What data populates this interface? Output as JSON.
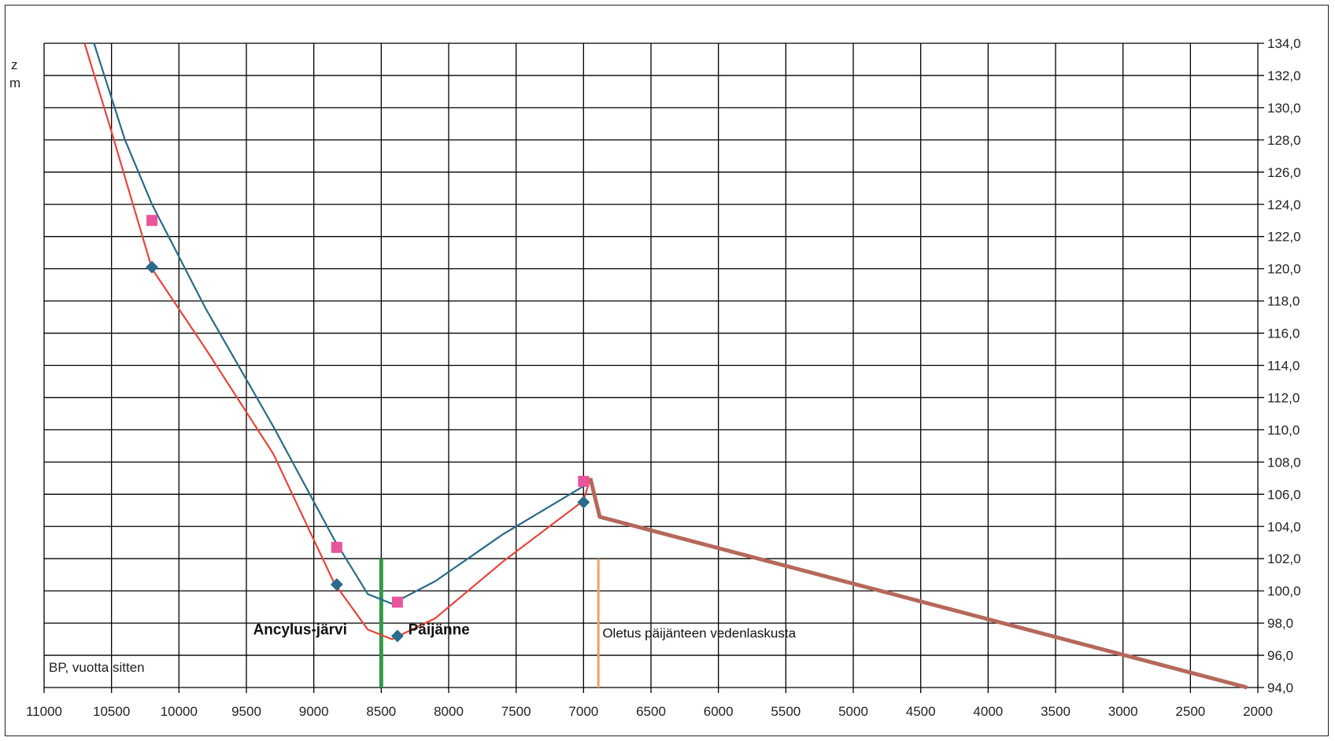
{
  "chart_data": {
    "type": "line",
    "title": "",
    "xlabel": "BP, vuotta sitten",
    "ylabel_lines": [
      "z",
      "m"
    ],
    "xlim": [
      11000,
      2000
    ],
    "ylim": [
      94,
      134
    ],
    "xticks": [
      "11000",
      "10500",
      "10000",
      "9500",
      "9000",
      "8500",
      "8000",
      "7500",
      "7000",
      "6500",
      "6000",
      "5500",
      "5000",
      "4500",
      "4000",
      "3500",
      "3000",
      "2500",
      "2000"
    ],
    "yticks": [
      "134,0",
      "132,0",
      "130,0",
      "128,0",
      "126,0",
      "124,0",
      "122,0",
      "120,0",
      "118,0",
      "116,0",
      "114,0",
      "112,0",
      "110,0",
      "108,0",
      "106,0",
      "104,0",
      "102,0",
      "100,0",
      "98,0",
      "96,0",
      "94,0"
    ],
    "grid": true,
    "series": [
      {
        "color": "#2a6a8a",
        "x": [
          10630,
          10400,
          10200,
          9800,
          9300,
          8850,
          8600,
          8420,
          8100,
          7600,
          7000,
          6950
        ],
        "y": [
          134.0,
          128.0,
          124.0,
          117.5,
          110.2,
          103.2,
          99.8,
          99.2,
          100.6,
          103.5,
          106.5,
          107.0
        ]
      },
      {
        "color": "#e8453c",
        "x": [
          10700,
          10500,
          10200,
          9800,
          9300,
          8850,
          8600,
          8420,
          8100,
          7600,
          7000,
          6950
        ],
        "y": [
          134.0,
          128.5,
          120.0,
          115.0,
          108.5,
          100.5,
          97.6,
          97.0,
          98.3,
          101.8,
          105.6,
          107.0
        ]
      },
      {
        "color": "#b5685a",
        "x": [
          6950,
          6880,
          2080
        ],
        "y": [
          107.0,
          104.6,
          94.0
        ]
      }
    ],
    "markers": [
      {
        "shape": "square",
        "color": "#e8559a",
        "x": 10200,
        "y": 123.0
      },
      {
        "shape": "square",
        "color": "#e8559a",
        "x": 8830,
        "y": 102.7
      },
      {
        "shape": "square",
        "color": "#e8559a",
        "x": 8380,
        "y": 99.3
      },
      {
        "shape": "square",
        "color": "#e8559a",
        "x": 7000,
        "y": 106.8
      },
      {
        "shape": "diamond",
        "color": "#2a6a8a",
        "x": 10200,
        "y": 120.1
      },
      {
        "shape": "diamond",
        "color": "#2a6a8a",
        "x": 8830,
        "y": 100.4
      },
      {
        "shape": "diamond",
        "color": "#2a6a8a",
        "x": 8380,
        "y": 97.2
      },
      {
        "shape": "diamond",
        "color": "#2a6a8a",
        "x": 7000,
        "y": 105.5
      }
    ],
    "vlines": [
      {
        "color": "#2e9a4a",
        "x": 8500,
        "y": [
          94,
          102
        ]
      },
      {
        "color": "#f0a060",
        "x": 6890,
        "y": [
          94,
          102
        ]
      }
    ],
    "annotations": [
      {
        "text": "Ancylus-järvi",
        "x": 9450,
        "y": 97.6,
        "bold": true
      },
      {
        "text": "Päijänne",
        "x": 8300,
        "y": 97.6,
        "bold": true
      },
      {
        "text": "Oletus päijänteen vedenlaskusta",
        "x": 6860,
        "y": 97.4,
        "bold": false
      }
    ]
  }
}
